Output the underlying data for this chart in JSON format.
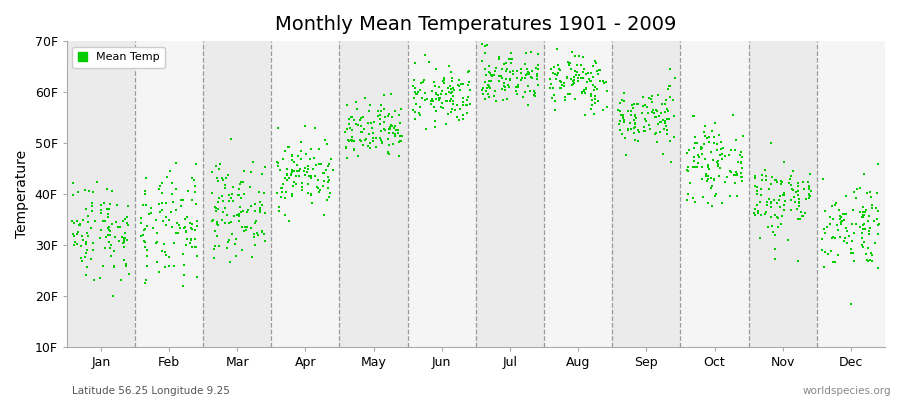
{
  "title": "Monthly Mean Temperatures 1901 - 2009",
  "ylabel": "Temperature",
  "y_tick_labels": [
    "10F",
    "20F",
    "30F",
    "40F",
    "50F",
    "60F",
    "70F"
  ],
  "y_tick_values": [
    10,
    20,
    30,
    40,
    50,
    60,
    70
  ],
  "ylim": [
    10,
    70
  ],
  "months": [
    "Jan",
    "Feb",
    "Mar",
    "Apr",
    "May",
    "Jun",
    "Jul",
    "Aug",
    "Sep",
    "Oct",
    "Nov",
    "Dec"
  ],
  "legend_label": "Mean Temp",
  "dot_color": "#00cc00",
  "band_colors": [
    "#ebebeb",
    "#f5f5f5"
  ],
  "subtitle_left": "Latitude 56.25 Longitude 9.25",
  "subtitle_right": "worldspecies.org",
  "mean_temps_F": [
    33.0,
    33.0,
    37.0,
    44.0,
    52.0,
    59.0,
    63.0,
    62.0,
    55.0,
    46.0,
    39.0,
    34.0
  ],
  "std_temps_F": [
    5.0,
    5.5,
    4.5,
    3.5,
    3.0,
    2.8,
    2.8,
    2.8,
    3.0,
    3.5,
    4.0,
    4.5
  ],
  "n_years": 109,
  "seed": 42,
  "dot_size": 4,
  "title_fontsize": 14,
  "axis_fontsize": 9,
  "ylabel_fontsize": 10
}
